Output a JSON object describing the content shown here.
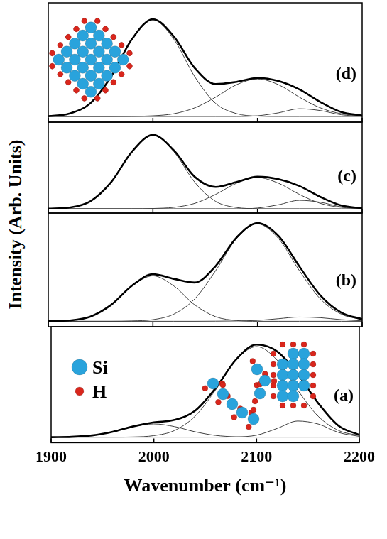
{
  "ylabel": "Intensity (Arb. Units)",
  "chart_data": [
    {
      "type": "line",
      "title": "(d)",
      "grid": false,
      "tick_labels": false,
      "x": [
        1900,
        1920,
        1940,
        1960,
        1980,
        2000,
        2020,
        2040,
        2060,
        2080,
        2100,
        2120,
        2140,
        2160,
        2180,
        2200
      ],
      "xlim": [
        1900,
        2200
      ],
      "xticks": [
        1900,
        2000,
        2100,
        2200
      ],
      "ylim": [
        -0.05,
        1
      ],
      "series": [
        {
          "color": "#000000",
          "values": [
            0.003,
            0.025,
            0.115,
            0.35,
            0.681,
            0.856,
            0.704,
            0.426,
            0.285,
            0.305,
            0.339,
            0.312,
            0.238,
            0.128,
            0.039,
            0.008
          ]
        },
        {
          "color": "#404040",
          "values": [
            0.003,
            0.025,
            0.115,
            0.35,
            0.68,
            0.85,
            0.68,
            0.35,
            0.115,
            0.025,
            0.003,
            0,
            0,
            0,
            0,
            0
          ]
        },
        {
          "color": "#404040",
          "values": [
            0,
            0,
            0,
            0,
            0.001,
            0.006,
            0.024,
            0.076,
            0.17,
            0.28,
            0.33,
            0.28,
            0.17,
            0.076,
            0.024,
            0.006
          ]
        },
        {
          "color": "#404040",
          "values": [
            0,
            0,
            0,
            0,
            0,
            0,
            0,
            0,
            0,
            0,
            0.006,
            0.032,
            0.068,
            0.052,
            0.015,
            0.002
          ]
        }
      ]
    },
    {
      "type": "line",
      "title": "(c)",
      "grid": false,
      "tick_labels": false,
      "x": [
        1900,
        1920,
        1940,
        1960,
        1980,
        2000,
        2020,
        2040,
        2060,
        2080,
        2100,
        2120,
        2140,
        2160,
        2180,
        2200
      ],
      "xlim": [
        1900,
        2200
      ],
      "xticks": [
        1900,
        2000,
        2100,
        2200
      ],
      "ylim": [
        -0.05,
        1
      ],
      "series": [
        {
          "color": "#000000",
          "values": [
            0.001,
            0.014,
            0.085,
            0.306,
            0.659,
            0.853,
            0.675,
            0.368,
            0.251,
            0.309,
            0.369,
            0.341,
            0.263,
            0.137,
            0.038,
            0.005
          ]
        },
        {
          "color": "#404040",
          "values": [
            0.001,
            0.014,
            0.085,
            0.306,
            0.659,
            0.85,
            0.659,
            0.306,
            0.085,
            0.014,
            0.001,
            0,
            0,
            0,
            0,
            0
          ]
        },
        {
          "color": "#404040",
          "values": [
            0,
            0,
            0,
            0,
            0,
            0.003,
            0.016,
            0.062,
            0.166,
            0.295,
            0.36,
            0.295,
            0.166,
            0.062,
            0.016,
            0.003
          ]
        },
        {
          "color": "#404040",
          "values": [
            0,
            0,
            0,
            0,
            0,
            0,
            0,
            0,
            0,
            0,
            0.008,
            0.046,
            0.097,
            0.075,
            0.022,
            0.002
          ]
        }
      ]
    },
    {
      "type": "line",
      "title": "(b)",
      "grid": false,
      "tick_labels": false,
      "x": [
        1900,
        1920,
        1940,
        1960,
        1980,
        2000,
        2020,
        2040,
        2060,
        2080,
        2100,
        2120,
        2140,
        2160,
        2180,
        2200
      ],
      "xlim": [
        1900,
        2200
      ],
      "xticks": [
        1900,
        2000,
        2100,
        2200
      ],
      "ylim": [
        -0.05,
        1
      ],
      "series": [
        {
          "color": "#000000",
          "values": [
            0,
            0.007,
            0.042,
            0.151,
            0.329,
            0.435,
            0.392,
            0.358,
            0.511,
            0.775,
            0.908,
            0.789,
            0.507,
            0.24,
            0.081,
            0.019
          ]
        },
        {
          "color": "#404040",
          "values": [
            0,
            0.007,
            0.042,
            0.151,
            0.326,
            0.42,
            0.326,
            0.151,
            0.042,
            0.007,
            0,
            0,
            0,
            0,
            0,
            0
          ]
        },
        {
          "color": "#404040",
          "values": [
            0,
            0,
            0,
            0,
            0.003,
            0.015,
            0.066,
            0.207,
            0.468,
            0.765,
            0.9,
            0.765,
            0.468,
            0.207,
            0.066,
            0.015
          ]
        },
        {
          "color": "#404040",
          "values": [
            0,
            0,
            0,
            0,
            0,
            0,
            0,
            0,
            0.001,
            0.003,
            0.008,
            0.024,
            0.039,
            0.033,
            0.015,
            0.004
          ]
        }
      ]
    },
    {
      "type": "line",
      "title": "(a)",
      "grid": false,
      "tick_labels": "x",
      "xlabel": "Wavenumber (cm⁻¹)",
      "x": [
        1900,
        1920,
        1940,
        1960,
        1980,
        2000,
        2020,
        2040,
        2060,
        2080,
        2100,
        2120,
        2140,
        2160,
        2180,
        2200
      ],
      "xlim": [
        1900,
        2200
      ],
      "xticks": [
        1900,
        2000,
        2100,
        2200
      ],
      "ylim": [
        -0.05,
        1
      ],
      "annotations": [
        {
          "text": "Si",
          "color": "#29a3dc",
          "marker": "circle"
        },
        {
          "text": "H",
          "color": "#d9261c",
          "marker": "circle"
        }
      ],
      "series": [
        {
          "color": "#000000",
          "values": [
            0,
            0.003,
            0.016,
            0.049,
            0.098,
            0.134,
            0.156,
            0.238,
            0.442,
            0.702,
            0.838,
            0.776,
            0.572,
            0.308,
            0.102,
            0.021
          ]
        },
        {
          "color": "#404040",
          "values": [
            0,
            0.003,
            0.016,
            0.049,
            0.096,
            0.12,
            0.096,
            0.049,
            0.016,
            0.003,
            0,
            0,
            0,
            0,
            0,
            0
          ]
        },
        {
          "color": "#404040",
          "values": [
            0,
            0,
            0,
            0,
            0.002,
            0.014,
            0.06,
            0.189,
            0.426,
            0.697,
            0.82,
            0.697,
            0.426,
            0.189,
            0.06,
            0.014
          ]
        },
        {
          "color": "#404040",
          "values": [
            0,
            0,
            0,
            0,
            0,
            0,
            0,
            0,
            0,
            0.002,
            0.018,
            0.079,
            0.146,
            0.119,
            0.042,
            0.007
          ]
        }
      ]
    }
  ]
}
